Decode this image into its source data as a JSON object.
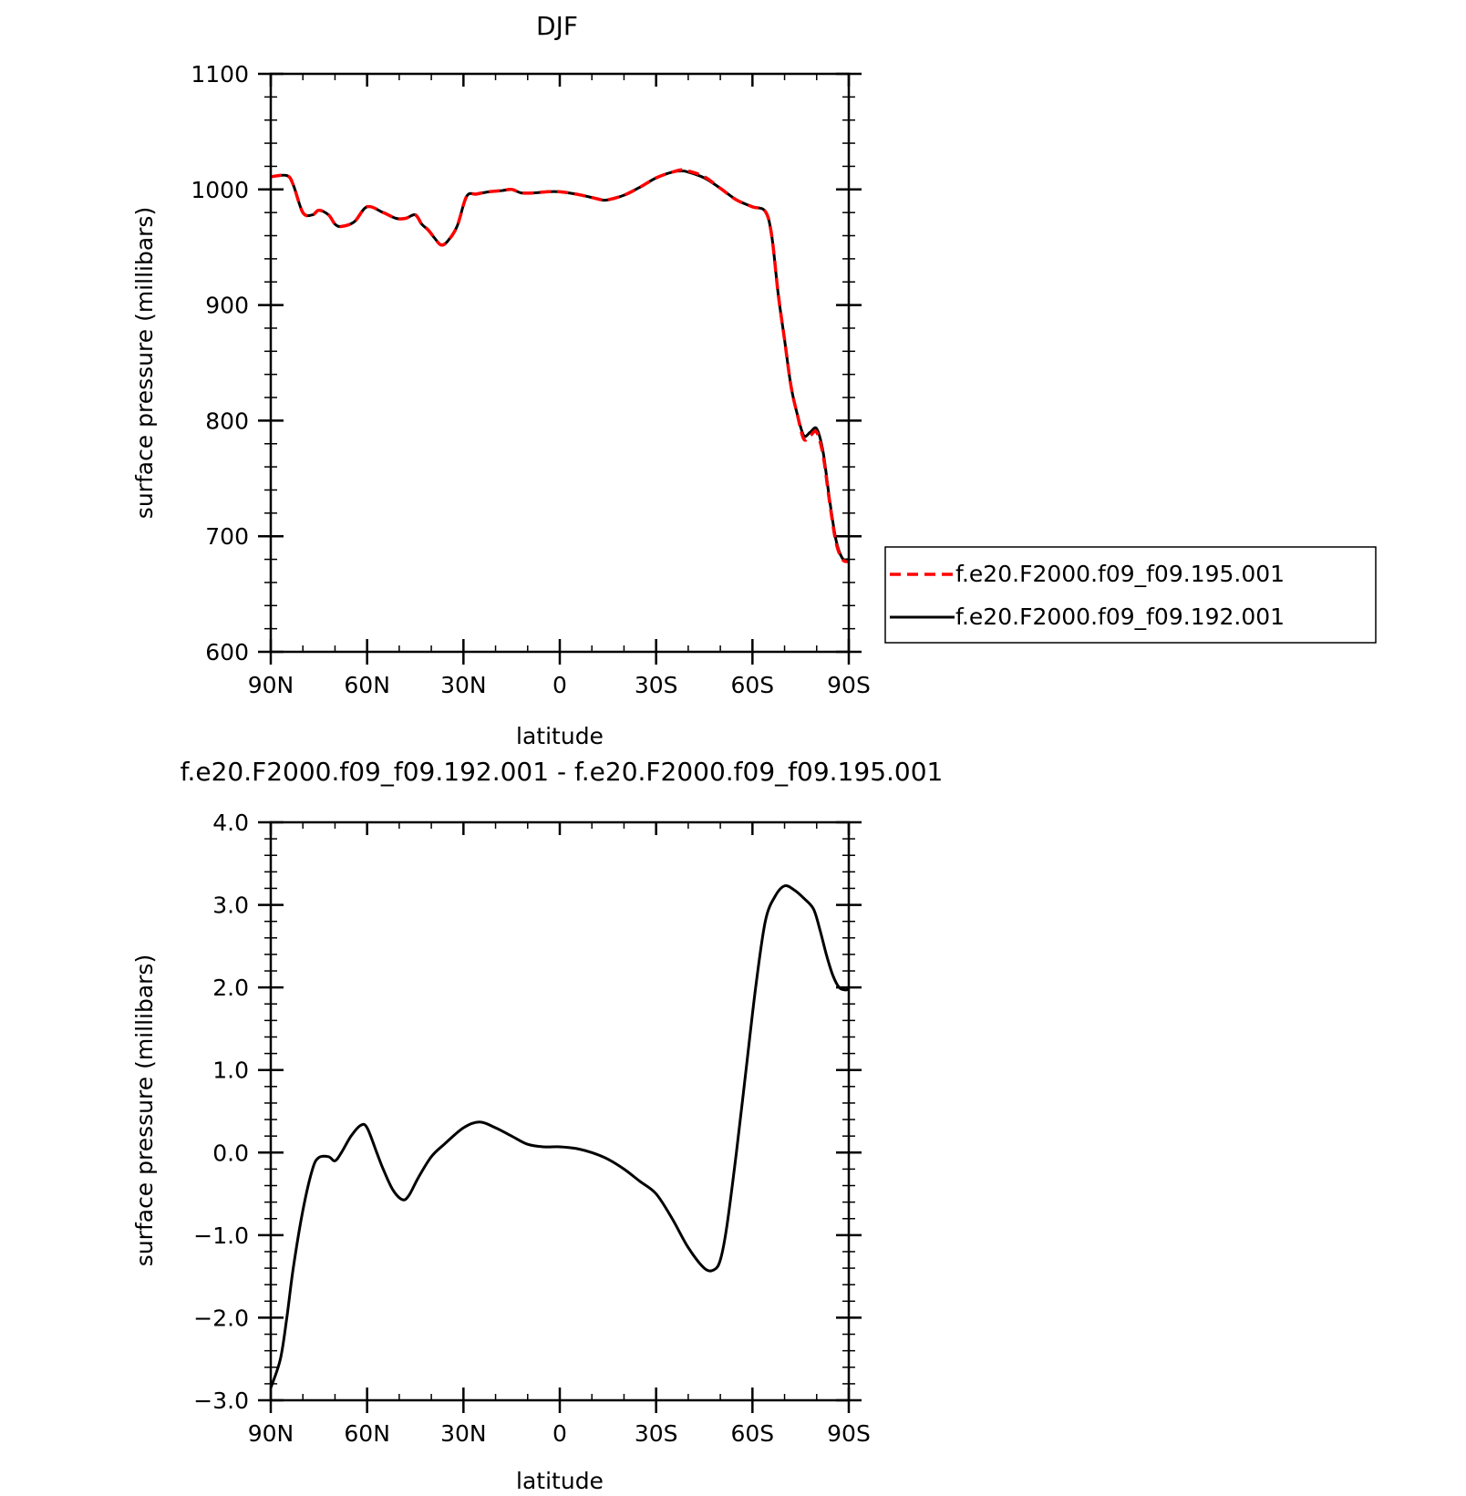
{
  "chart_data": [
    {
      "type": "line",
      "title": "DJF",
      "xlabel": "latitude",
      "ylabel": "surface pressure (millibars)",
      "xlim": [
        90,
        -90
      ],
      "ylim": [
        600,
        1100
      ],
      "x_ticks": [
        {
          "value": 90,
          "label": "90N"
        },
        {
          "value": 60,
          "label": "60N"
        },
        {
          "value": 30,
          "label": "30N"
        },
        {
          "value": 0,
          "label": "0"
        },
        {
          "value": -30,
          "label": "30S"
        },
        {
          "value": -60,
          "label": "60S"
        },
        {
          "value": -90,
          "label": "90S"
        }
      ],
      "y_ticks": [
        {
          "value": 600,
          "label": "600"
        },
        {
          "value": 700,
          "label": "700"
        },
        {
          "value": 800,
          "label": "800"
        },
        {
          "value": 900,
          "label": "900"
        },
        {
          "value": 1000,
          "label": "1000"
        },
        {
          "value": 1100,
          "label": "1100"
        }
      ],
      "legend_position": "right",
      "series": [
        {
          "name": "f.e20.F2000.f09_f09.195.001",
          "color": "#ff0000",
          "dash": "dashed",
          "x": [
            90,
            85,
            83,
            80,
            77,
            75,
            72,
            70,
            68,
            64,
            60,
            55,
            51,
            48,
            45,
            43,
            41,
            39,
            37,
            35,
            32,
            29,
            26,
            22,
            18,
            15,
            12,
            8,
            4,
            0,
            -5,
            -10,
            -13,
            -15,
            -20,
            -25,
            -30,
            -35,
            -38,
            -40,
            -45,
            -50,
            -55,
            -60,
            -64,
            -66,
            -68,
            -70,
            -72,
            -74,
            -76,
            -78,
            -80,
            -82,
            -84,
            -86,
            -88,
            -90
          ],
          "y": [
            1011,
            1012,
            1004,
            980,
            978,
            982,
            978,
            970,
            968,
            972,
            985,
            980,
            975,
            975,
            978,
            970,
            965,
            958,
            952,
            955,
            968,
            994,
            996,
            998,
            999,
            1000,
            997,
            997,
            998,
            998,
            996,
            993,
            991,
            991,
            995,
            1002,
            1010,
            1015,
            1017,
            1016,
            1011,
            1001,
            991,
            985,
            981,
            960,
            910,
            870,
            830,
            805,
            784,
            787,
            790,
            770,
            730,
            695,
            680,
            678
          ]
        },
        {
          "name": "f.e20.F2000.f09_f09.192.001",
          "color": "#000000",
          "dash": "solid",
          "x": [
            90,
            85,
            83,
            80,
            77,
            75,
            72,
            70,
            68,
            64,
            60,
            55,
            51,
            48,
            45,
            43,
            41,
            39,
            37,
            35,
            32,
            29,
            26,
            22,
            18,
            15,
            12,
            8,
            4,
            0,
            -5,
            -10,
            -13,
            -15,
            -20,
            -25,
            -30,
            -35,
            -38,
            -40,
            -45,
            -50,
            -55,
            -60,
            -64,
            -66,
            -68,
            -70,
            -72,
            -74,
            -76,
            -78,
            -80,
            -82,
            -84,
            -86,
            -88,
            -90
          ],
          "y": [
            1011,
            1012,
            1004,
            980,
            978,
            982,
            978,
            970,
            968,
            972,
            985,
            980,
            975,
            975,
            978,
            970,
            965,
            958,
            952,
            955,
            968,
            994,
            996,
            998,
            999,
            1000,
            997,
            997,
            998,
            998,
            996,
            993,
            991,
            991,
            995,
            1002,
            1010,
            1015,
            1016,
            1015,
            1010,
            1001,
            991,
            985,
            981,
            960,
            910,
            870,
            830,
            805,
            787,
            790,
            793,
            773,
            732,
            697,
            681,
            680
          ]
        }
      ]
    },
    {
      "type": "line",
      "title": "f.e20.F2000.f09_f09.192.001 - f.e20.F2000.f09_f09.195.001",
      "xlabel": "latitude",
      "ylabel": "surface pressure (millibars)",
      "xlim": [
        90,
        -90
      ],
      "ylim": [
        -3.0,
        4.0
      ],
      "x_ticks": [
        {
          "value": 90,
          "label": "90N"
        },
        {
          "value": 60,
          "label": "60N"
        },
        {
          "value": 30,
          "label": "30N"
        },
        {
          "value": 0,
          "label": "0"
        },
        {
          "value": -30,
          "label": "30S"
        },
        {
          "value": -60,
          "label": "60S"
        },
        {
          "value": -90,
          "label": "90S"
        }
      ],
      "y_ticks": [
        {
          "value": -3.0,
          "label": "−3.0"
        },
        {
          "value": -2.0,
          "label": "−2.0"
        },
        {
          "value": -1.0,
          "label": "−1.0"
        },
        {
          "value": 0.0,
          "label": "0.0"
        },
        {
          "value": 1.0,
          "label": "1.0"
        },
        {
          "value": 2.0,
          "label": "2.0"
        },
        {
          "value": 3.0,
          "label": "3.0"
        },
        {
          "value": 4.0,
          "label": "4.0"
        }
      ],
      "series": [
        {
          "color": "#000000",
          "dash": "solid",
          "x": [
            90,
            87,
            85,
            83,
            80,
            77,
            75,
            72,
            70,
            68,
            65,
            62,
            60,
            57,
            55,
            52,
            49,
            47,
            44,
            40,
            36,
            30,
            25,
            20,
            15,
            10,
            5,
            0,
            -5,
            -10,
            -15,
            -20,
            -25,
            -30,
            -35,
            -40,
            -45,
            -48,
            -50,
            -52,
            -55,
            -58,
            -61,
            -64,
            -67,
            -70,
            -73,
            -76,
            -79,
            -81,
            -83,
            -85,
            -87,
            -89,
            -90
          ],
          "y": [
            -2.85,
            -2.5,
            -2.0,
            -1.4,
            -0.7,
            -0.2,
            -0.06,
            -0.05,
            -0.1,
            0.0,
            0.2,
            0.33,
            0.3,
            0.0,
            -0.2,
            -0.45,
            -0.57,
            -0.52,
            -0.3,
            -0.05,
            0.1,
            0.3,
            0.37,
            0.3,
            0.2,
            0.1,
            0.07,
            0.07,
            0.05,
            0.0,
            -0.08,
            -0.2,
            -0.35,
            -0.5,
            -0.8,
            -1.15,
            -1.4,
            -1.42,
            -1.3,
            -0.9,
            0.0,
            1.0,
            2.0,
            2.8,
            3.1,
            3.23,
            3.18,
            3.08,
            2.95,
            2.7,
            2.4,
            2.15,
            2.0,
            1.97,
            1.98
          ]
        }
      ]
    }
  ]
}
